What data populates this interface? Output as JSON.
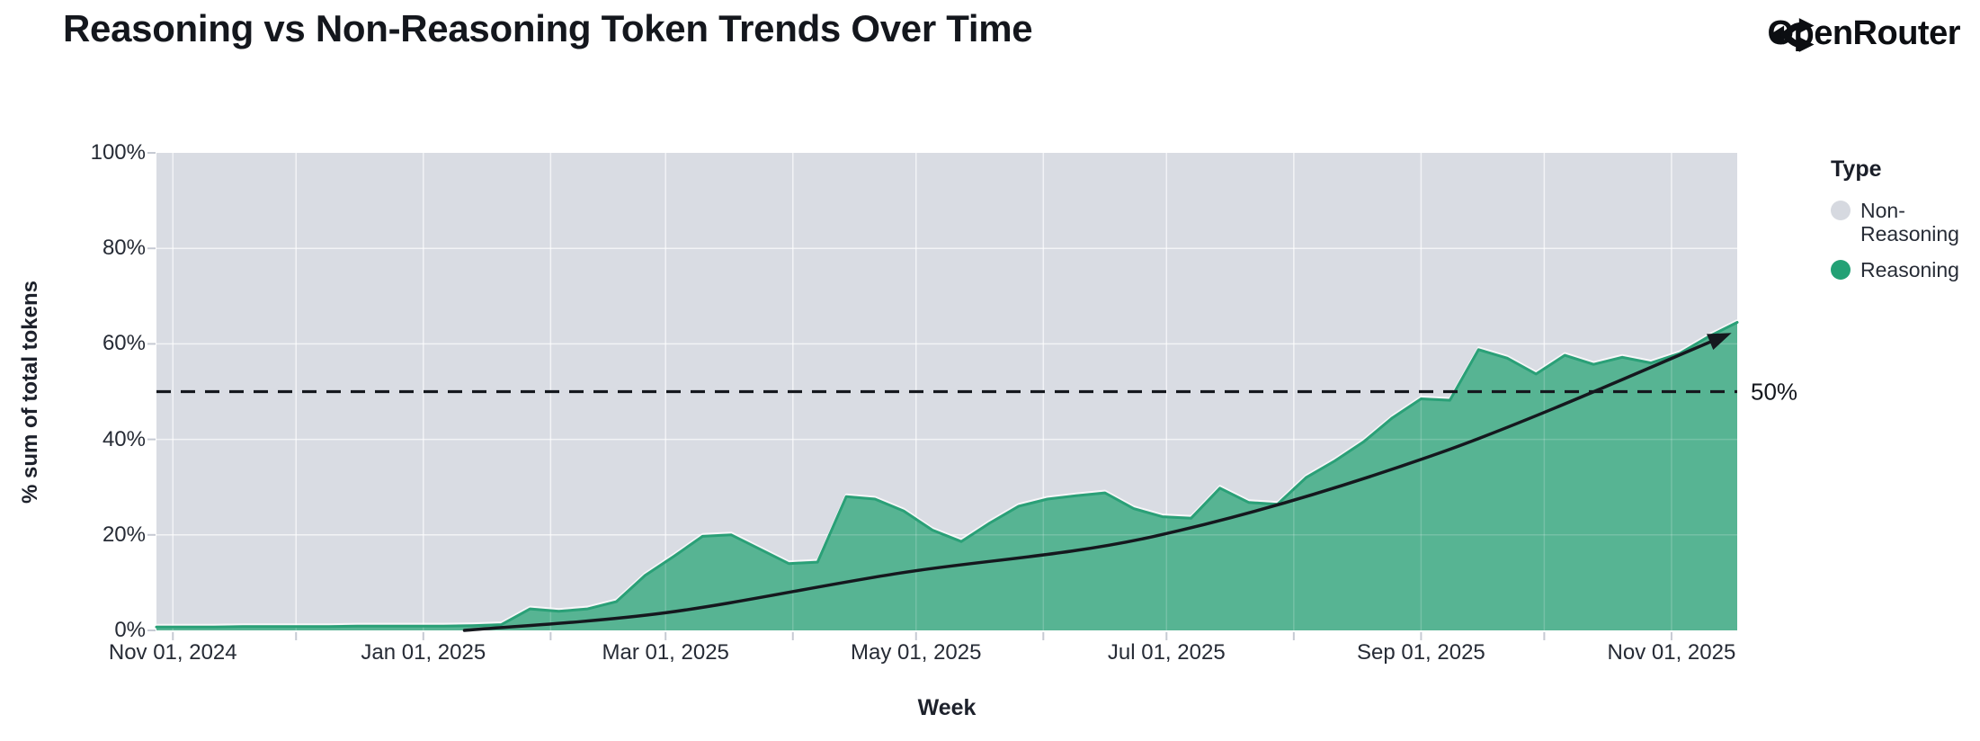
{
  "header": {
    "title": "Reasoning vs Non-Reasoning Token Trends Over Time",
    "brand": "OpenRouter"
  },
  "legend": {
    "title": "Type",
    "items": [
      {
        "label": "Non-Reasoning",
        "color": "#d6d9e0"
      },
      {
        "label": "Reasoning",
        "color": "#23a175"
      }
    ]
  },
  "colors": {
    "non_reasoning_fill": "#d9dce3",
    "reasoning_fill": "#57b493",
    "reasoning_line": "#2aa077",
    "grid_line": "rgba(255,255,255,0.6)",
    "grid_line_over": "rgba(255,255,255,0.18)",
    "tick_mark": "#c6cad3",
    "reference_black": "#15181e"
  },
  "chart_data": {
    "type": "area",
    "stacked": "percent",
    "title": "Reasoning vs Non-Reasoning Token Trends Over Time",
    "xlabel": "Week",
    "ylabel": "% sum of total tokens",
    "ylim": [
      0,
      100
    ],
    "grid": true,
    "legend_position": "right",
    "x_start_date": "2024-10-28",
    "x_end_date": "2025-11-17",
    "x_domain_days": 385,
    "x_ticks": [
      {
        "day": 4,
        "label": "Nov 01, 2024"
      },
      {
        "day": 65,
        "label": "Jan 01, 2025"
      },
      {
        "day": 124,
        "label": "Mar 01, 2025"
      },
      {
        "day": 185,
        "label": "May 01, 2025"
      },
      {
        "day": 246,
        "label": "Jul 01, 2025"
      },
      {
        "day": 308,
        "label": "Sep 01, 2025"
      },
      {
        "day": 369,
        "label": "Nov 01, 2025"
      }
    ],
    "month_tick_days": [
      4,
      34,
      65,
      96,
      124,
      155,
      185,
      216,
      246,
      277,
      308,
      338,
      369
    ],
    "y_ticks": [
      {
        "value": 0,
        "label": "0%"
      },
      {
        "value": 20,
        "label": "20%"
      },
      {
        "value": 40,
        "label": "40%"
      },
      {
        "value": 60,
        "label": "60%"
      },
      {
        "value": 80,
        "label": "80%"
      },
      {
        "value": 100,
        "label": "100%"
      }
    ],
    "series": [
      {
        "name": "Reasoning",
        "role": "bottom-of-stack",
        "weekly_pct": [
          0.7,
          0.7,
          0.7,
          0.8,
          0.8,
          0.8,
          0.8,
          0.9,
          0.9,
          0.9,
          0.9,
          1.0,
          1.2,
          4.5,
          4.0,
          4.5,
          6.0,
          11.5,
          15.5,
          19.7,
          20.0,
          17.0,
          14.0,
          14.3,
          28.0,
          27.5,
          25.0,
          21.0,
          18.6,
          22.5,
          26.0,
          27.5,
          28.2,
          28.8,
          25.5,
          23.8,
          23.5,
          29.8,
          26.8,
          26.4,
          32.0,
          35.5,
          39.5,
          44.5,
          48.5,
          48.2,
          58.8,
          57.0,
          53.7,
          57.6,
          55.7,
          57.2,
          56.0,
          58.0,
          61.5,
          64.5
        ]
      },
      {
        "name": "Non-Reasoning",
        "role": "remainder-to-100-percent"
      }
    ],
    "reference_line": {
      "value": 50,
      "label": "50%",
      "style": "dashed"
    },
    "trend_arrow": {
      "description": "black curved arrow from ~0% mid-Jan 2025 to ~62% mid-Nov 2025",
      "points_day_pct": [
        [
          75,
          0
        ],
        [
          124,
          3.7
        ],
        [
          181,
          12
        ],
        [
          243,
          19.7
        ],
        [
          312,
          37
        ],
        [
          382,
          61.7
        ]
      ]
    }
  }
}
